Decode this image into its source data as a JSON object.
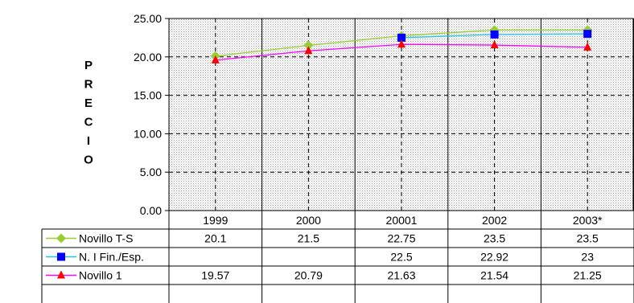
{
  "chart_data": {
    "type": "line",
    "title": "",
    "ylabel": "PRECIO",
    "xlabel": "",
    "ylim": [
      0,
      25
    ],
    "y_ticks": [
      "0.00",
      "5.00",
      "10.00",
      "15.00",
      "20.00",
      "25.00"
    ],
    "categories": [
      "1999",
      "2000",
      "20001",
      "2002",
      "2003*"
    ],
    "grid": true,
    "legend": "data-table",
    "series": [
      {
        "name": "Novillo T-S",
        "color": "#9acd32",
        "marker": "diamond",
        "values": [
          20.1,
          21.5,
          22.75,
          23.5,
          23.5
        ],
        "labels": [
          "20.1",
          "21.5",
          "22.75",
          "23.5",
          "23.5"
        ]
      },
      {
        "name": "N. I Fin./Esp.",
        "color": "#0000ff",
        "line_color": "#1ec8e6",
        "marker": "square",
        "values": [
          null,
          null,
          22.5,
          22.92,
          23
        ],
        "labels": [
          "",
          "",
          "22.5",
          "22.92",
          "23"
        ]
      },
      {
        "name": "Novillo 1",
        "color": "#ff0000",
        "line_color": "#ff00ff",
        "marker": "triangle",
        "values": [
          19.57,
          20.79,
          21.63,
          21.54,
          21.25
        ],
        "labels": [
          "19.57",
          "20.79",
          "21.63",
          "21.54",
          "21.25"
        ]
      }
    ]
  }
}
